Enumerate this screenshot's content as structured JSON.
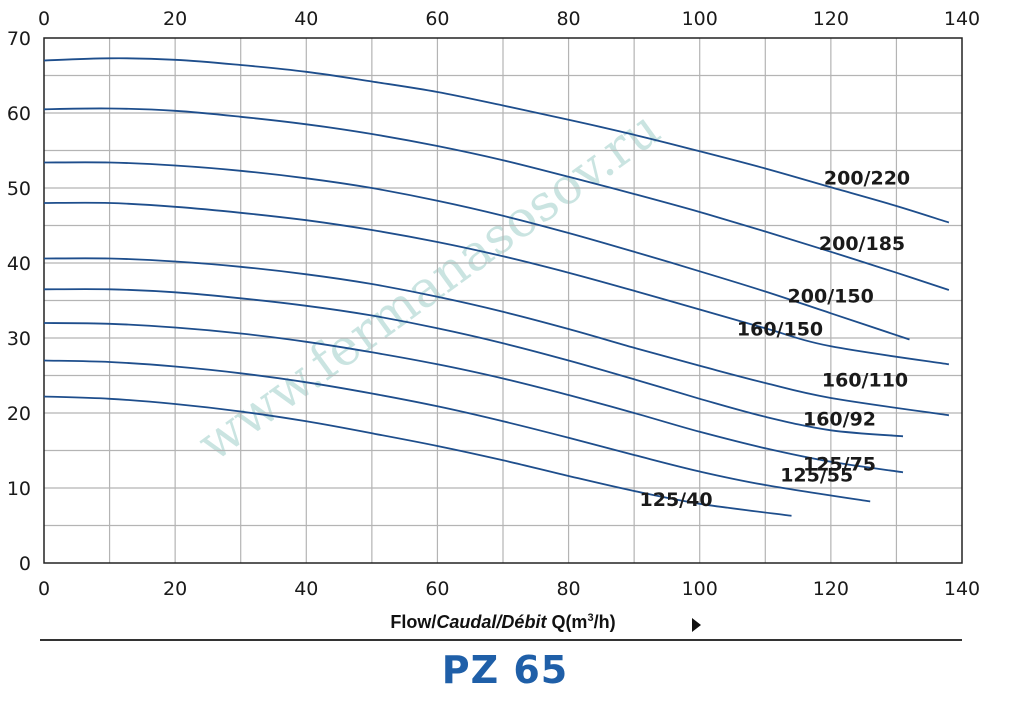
{
  "chart_data": {
    "type": "line",
    "title": "PZ 65",
    "xlabel_parts": [
      "Flow/",
      "Caudal/Débit",
      " Q(m",
      "3",
      "/h)"
    ],
    "ylabel": "",
    "xlim": [
      0,
      140
    ],
    "ylim": [
      0,
      70
    ],
    "x_ticks": [
      0,
      20,
      40,
      60,
      80,
      100,
      120,
      140
    ],
    "y_ticks": [
      0,
      10,
      20,
      30,
      40,
      50,
      60,
      70
    ],
    "grid": true,
    "line_color": "#1e4e8c",
    "grid_color": "#b4b4b4",
    "title_color": "#1f5fa8",
    "watermark": "www.fermanasosov.ru",
    "series": [
      {
        "name": "200/220",
        "points": [
          [
            0,
            67
          ],
          [
            10,
            67.3
          ],
          [
            20,
            67.1
          ],
          [
            30,
            66.4
          ],
          [
            40,
            65.5
          ],
          [
            50,
            64.2
          ],
          [
            60,
            62.8
          ],
          [
            70,
            61
          ],
          [
            80,
            59.1
          ],
          [
            90,
            57.1
          ],
          [
            100,
            54.9
          ],
          [
            110,
            52.6
          ],
          [
            120,
            50.1
          ],
          [
            130,
            47.6
          ],
          [
            138,
            45.4
          ]
        ]
      },
      {
        "name": "200/185",
        "points": [
          [
            0,
            60.5
          ],
          [
            10,
            60.6
          ],
          [
            20,
            60.3
          ],
          [
            30,
            59.5
          ],
          [
            40,
            58.5
          ],
          [
            50,
            57.2
          ],
          [
            60,
            55.6
          ],
          [
            70,
            53.7
          ],
          [
            80,
            51.5
          ],
          [
            90,
            49.2
          ],
          [
            100,
            46.8
          ],
          [
            110,
            44.2
          ],
          [
            120,
            41.5
          ],
          [
            130,
            38.7
          ],
          [
            138,
            36.4
          ]
        ]
      },
      {
        "name": "200/150",
        "points": [
          [
            0,
            53.4
          ],
          [
            10,
            53.4
          ],
          [
            20,
            53
          ],
          [
            30,
            52.3
          ],
          [
            40,
            51.3
          ],
          [
            50,
            50
          ],
          [
            60,
            48.3
          ],
          [
            70,
            46.3
          ],
          [
            80,
            44
          ],
          [
            90,
            41.5
          ],
          [
            100,
            38.9
          ],
          [
            110,
            36.2
          ],
          [
            120,
            33.3
          ],
          [
            132,
            29.8
          ]
        ]
      },
      {
        "name": "160/150",
        "points": [
          [
            0,
            48
          ],
          [
            10,
            48
          ],
          [
            20,
            47.5
          ],
          [
            30,
            46.7
          ],
          [
            40,
            45.7
          ],
          [
            50,
            44.4
          ],
          [
            60,
            42.8
          ],
          [
            70,
            40.9
          ],
          [
            80,
            38.7
          ],
          [
            90,
            36.3
          ],
          [
            100,
            33.8
          ],
          [
            110,
            31.3
          ],
          [
            120,
            28.9
          ],
          [
            138,
            26.5
          ]
        ]
      },
      {
        "name": "160/110",
        "points": [
          [
            0,
            40.6
          ],
          [
            10,
            40.6
          ],
          [
            20,
            40.2
          ],
          [
            30,
            39.5
          ],
          [
            40,
            38.5
          ],
          [
            50,
            37.2
          ],
          [
            60,
            35.5
          ],
          [
            70,
            33.5
          ],
          [
            80,
            31.2
          ],
          [
            90,
            28.7
          ],
          [
            100,
            26.3
          ],
          [
            110,
            24
          ],
          [
            120,
            22
          ],
          [
            138,
            19.7
          ]
        ]
      },
      {
        "name": "160/92",
        "points": [
          [
            0,
            36.5
          ],
          [
            10,
            36.5
          ],
          [
            20,
            36.1
          ],
          [
            30,
            35.3
          ],
          [
            40,
            34.3
          ],
          [
            50,
            33
          ],
          [
            60,
            31.3
          ],
          [
            70,
            29.3
          ],
          [
            80,
            27
          ],
          [
            90,
            24.5
          ],
          [
            100,
            21.9
          ],
          [
            110,
            19.5
          ],
          [
            120,
            17.7
          ],
          [
            131,
            16.9
          ]
        ]
      },
      {
        "name": "125/75",
        "points": [
          [
            0,
            32
          ],
          [
            10,
            31.9
          ],
          [
            20,
            31.4
          ],
          [
            30,
            30.6
          ],
          [
            40,
            29.5
          ],
          [
            50,
            28.1
          ],
          [
            60,
            26.5
          ],
          [
            70,
            24.6
          ],
          [
            80,
            22.4
          ],
          [
            90,
            20
          ],
          [
            100,
            17.5
          ],
          [
            110,
            15.3
          ],
          [
            120,
            13.5
          ],
          [
            131,
            12.1
          ]
        ]
      },
      {
        "name": "125/55",
        "points": [
          [
            0,
            27
          ],
          [
            10,
            26.8
          ],
          [
            20,
            26.2
          ],
          [
            30,
            25.3
          ],
          [
            40,
            24.1
          ],
          [
            50,
            22.6
          ],
          [
            60,
            20.9
          ],
          [
            70,
            18.9
          ],
          [
            80,
            16.7
          ],
          [
            90,
            14.4
          ],
          [
            100,
            12.2
          ],
          [
            110,
            10.4
          ],
          [
            126,
            8.2
          ]
        ]
      },
      {
        "name": "125/40",
        "points": [
          [
            0,
            22.2
          ],
          [
            10,
            21.9
          ],
          [
            20,
            21.2
          ],
          [
            30,
            20.2
          ],
          [
            40,
            18.9
          ],
          [
            50,
            17.3
          ],
          [
            60,
            15.6
          ],
          [
            70,
            13.7
          ],
          [
            80,
            11.6
          ],
          [
            90,
            9.6
          ],
          [
            100,
            7.9
          ],
          [
            114,
            6.3
          ]
        ]
      }
    ]
  }
}
